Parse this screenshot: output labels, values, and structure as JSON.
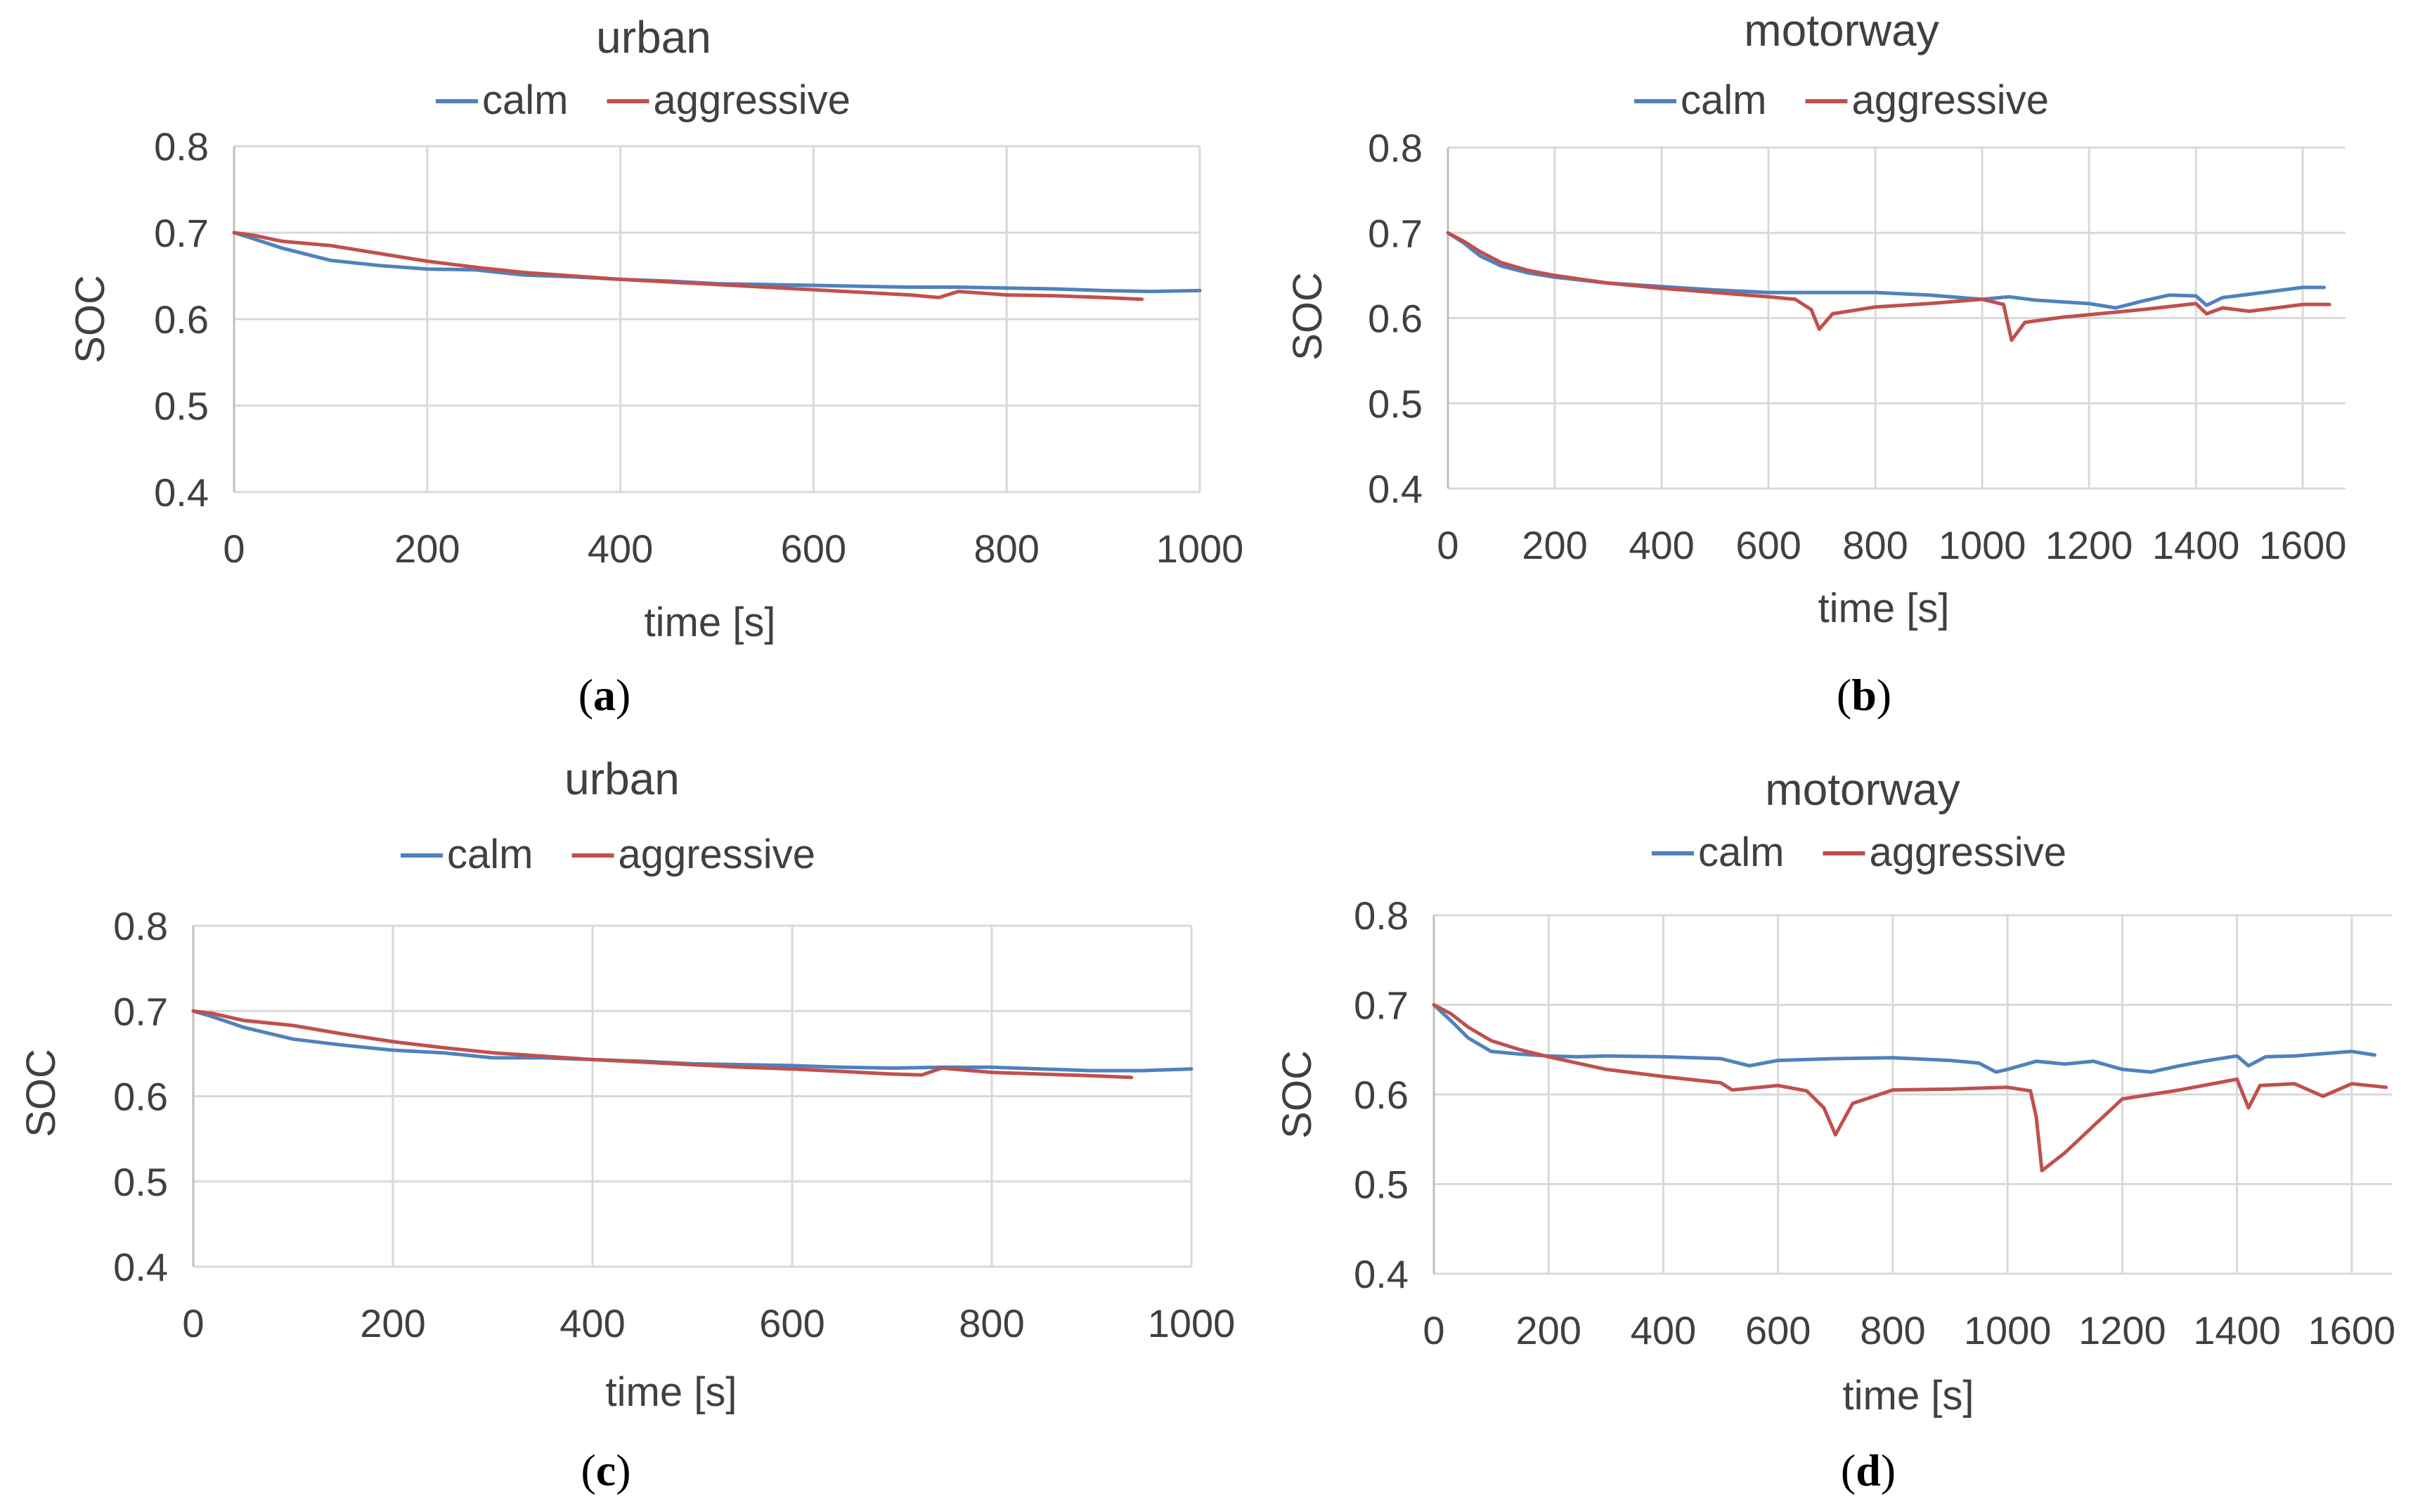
{
  "figure": {
    "panels": [
      {
        "id": "a",
        "caption": "a",
        "chart_index": 0
      },
      {
        "id": "b",
        "caption": "b",
        "chart_index": 1
      },
      {
        "id": "c",
        "caption": "c",
        "chart_index": 2
      },
      {
        "id": "d",
        "caption": "d",
        "chart_index": 3
      }
    ]
  },
  "colors": {
    "calm": "#4f81bd",
    "aggressive": "#c0504d",
    "grid": "#d9d9d9",
    "text": "#404040"
  },
  "chart_data": [
    {
      "type": "line",
      "title": "urban",
      "xlabel": "time [s]",
      "ylabel": "SOC",
      "xlim": [
        0,
        1000
      ],
      "ylim": [
        0.4,
        0.8
      ],
      "xticks": [
        0,
        200,
        400,
        600,
        800,
        1000
      ],
      "xtick_labels": [
        "0",
        "200",
        "400",
        "600",
        "800",
        "1000"
      ],
      "yticks": [
        0.4,
        0.5,
        0.6,
        0.7,
        0.8
      ],
      "ytick_labels": [
        "0.4",
        "0.5",
        "0.6",
        "0.7",
        "0.8"
      ],
      "grid": true,
      "legend_position": "top",
      "series": [
        {
          "name": "calm",
          "color": "#4f81bd",
          "x": [
            0,
            20,
            50,
            100,
            150,
            200,
            250,
            300,
            350,
            400,
            450,
            500,
            550,
            600,
            650,
            700,
            750,
            800,
            850,
            900,
            950,
            1000
          ],
          "y": [
            0.7,
            0.693,
            0.682,
            0.668,
            0.662,
            0.658,
            0.657,
            0.651,
            0.649,
            0.646,
            0.644,
            0.641,
            0.64,
            0.639,
            0.638,
            0.637,
            0.637,
            0.636,
            0.635,
            0.633,
            0.632,
            0.633
          ]
        },
        {
          "name": "aggressive",
          "color": "#c0504d",
          "x": [
            0,
            20,
            50,
            100,
            150,
            200,
            250,
            300,
            350,
            400,
            450,
            500,
            550,
            600,
            650,
            700,
            730,
            750,
            800,
            850,
            900,
            940
          ],
          "y": [
            0.7,
            0.697,
            0.69,
            0.685,
            0.676,
            0.667,
            0.66,
            0.654,
            0.65,
            0.646,
            0.643,
            0.64,
            0.637,
            0.634,
            0.631,
            0.628,
            0.625,
            0.632,
            0.628,
            0.627,
            0.625,
            0.623
          ]
        }
      ]
    },
    {
      "type": "line",
      "title": "motorway",
      "xlabel": "time [s]",
      "ylabel": "SOC",
      "xlim": [
        0,
        1680
      ],
      "ylim": [
        0.4,
        0.8
      ],
      "xticks": [
        0,
        200,
        400,
        600,
        800,
        1000,
        1200,
        1400,
        1600
      ],
      "xtick_labels": [
        "0",
        "200",
        "400",
        "600",
        "800",
        "1000",
        "1200",
        "1400",
        "1600"
      ],
      "yticks": [
        0.4,
        0.5,
        0.6,
        0.7,
        0.8
      ],
      "ytick_labels": [
        "0.4",
        "0.5",
        "0.6",
        "0.7",
        "0.8"
      ],
      "grid": true,
      "legend_position": "top",
      "series": [
        {
          "name": "calm",
          "color": "#4f81bd",
          "x": [
            0,
            30,
            60,
            100,
            150,
            200,
            300,
            400,
            500,
            600,
            700,
            800,
            900,
            1000,
            1050,
            1100,
            1200,
            1250,
            1300,
            1350,
            1400,
            1420,
            1450,
            1500,
            1600,
            1640
          ],
          "y": [
            0.7,
            0.688,
            0.673,
            0.661,
            0.653,
            0.648,
            0.641,
            0.637,
            0.633,
            0.63,
            0.63,
            0.63,
            0.627,
            0.622,
            0.625,
            0.621,
            0.617,
            0.612,
            0.62,
            0.627,
            0.626,
            0.615,
            0.624,
            0.628,
            0.636,
            0.636
          ]
        },
        {
          "name": "aggressive",
          "color": "#c0504d",
          "x": [
            0,
            30,
            60,
            100,
            150,
            200,
            300,
            400,
            500,
            600,
            650,
            680,
            695,
            720,
            800,
            900,
            1000,
            1040,
            1055,
            1080,
            1150,
            1200,
            1300,
            1400,
            1420,
            1450,
            1500,
            1550,
            1600,
            1650
          ],
          "y": [
            0.7,
            0.69,
            0.678,
            0.665,
            0.656,
            0.65,
            0.641,
            0.635,
            0.63,
            0.625,
            0.622,
            0.61,
            0.587,
            0.605,
            0.613,
            0.617,
            0.622,
            0.616,
            0.574,
            0.595,
            0.601,
            0.604,
            0.61,
            0.617,
            0.605,
            0.612,
            0.608,
            0.612,
            0.616,
            0.616
          ]
        }
      ]
    },
    {
      "type": "line",
      "title": "urban",
      "xlabel": "time [s]",
      "ylabel": "SOC",
      "xlim": [
        0,
        1000
      ],
      "ylim": [
        0.4,
        0.8
      ],
      "xticks": [
        0,
        200,
        400,
        600,
        800,
        1000
      ],
      "xtick_labels": [
        "0",
        "200",
        "400",
        "600",
        "800",
        "1000"
      ],
      "yticks": [
        0.4,
        0.5,
        0.6,
        0.7,
        0.8
      ],
      "ytick_labels": [
        "0.4",
        "0.5",
        "0.6",
        "0.7",
        "0.8"
      ],
      "grid": true,
      "legend_position": "top",
      "series": [
        {
          "name": "calm",
          "color": "#4f81bd",
          "x": [
            0,
            20,
            50,
            100,
            150,
            200,
            250,
            300,
            350,
            400,
            450,
            500,
            550,
            600,
            650,
            700,
            750,
            800,
            850,
            900,
            950,
            1000
          ],
          "y": [
            0.7,
            0.693,
            0.681,
            0.667,
            0.66,
            0.654,
            0.651,
            0.645,
            0.645,
            0.643,
            0.641,
            0.638,
            0.637,
            0.636,
            0.634,
            0.633,
            0.634,
            0.634,
            0.632,
            0.63,
            0.63,
            0.632
          ]
        },
        {
          "name": "aggressive",
          "color": "#c0504d",
          "x": [
            0,
            20,
            50,
            100,
            150,
            200,
            250,
            300,
            350,
            400,
            450,
            500,
            550,
            600,
            650,
            700,
            730,
            750,
            800,
            850,
            900,
            940
          ],
          "y": [
            0.7,
            0.697,
            0.689,
            0.683,
            0.673,
            0.664,
            0.657,
            0.651,
            0.647,
            0.643,
            0.64,
            0.637,
            0.634,
            0.632,
            0.629,
            0.626,
            0.625,
            0.633,
            0.628,
            0.626,
            0.624,
            0.622
          ]
        }
      ]
    },
    {
      "type": "line",
      "title": "motorway",
      "xlabel": "time [s]",
      "ylabel": "SOC",
      "xlim": [
        0,
        1670
      ],
      "ylim": [
        0.4,
        0.8
      ],
      "xticks": [
        0,
        200,
        400,
        600,
        800,
        1000,
        1200,
        1400,
        1600
      ],
      "xtick_labels": [
        "0",
        "200",
        "400",
        "600",
        "800",
        "1000",
        "1200",
        "1400",
        "1600"
      ],
      "yticks": [
        0.4,
        0.5,
        0.6,
        0.7,
        0.8
      ],
      "ytick_labels": [
        "0.4",
        "0.5",
        "0.6",
        "0.7",
        "0.8"
      ],
      "grid": true,
      "legend_position": "top",
      "series": [
        {
          "name": "calm",
          "color": "#4f81bd",
          "x": [
            0,
            30,
            60,
            100,
            150,
            200,
            250,
            300,
            400,
            500,
            550,
            600,
            700,
            800,
            900,
            950,
            980,
            1000,
            1050,
            1100,
            1150,
            1200,
            1250,
            1300,
            1350,
            1400,
            1420,
            1450,
            1500,
            1600,
            1640
          ],
          "y": [
            0.7,
            0.682,
            0.663,
            0.648,
            0.645,
            0.643,
            0.642,
            0.643,
            0.642,
            0.64,
            0.632,
            0.638,
            0.64,
            0.641,
            0.638,
            0.635,
            0.625,
            0.628,
            0.637,
            0.634,
            0.637,
            0.628,
            0.625,
            0.632,
            0.638,
            0.643,
            0.632,
            0.642,
            0.643,
            0.648,
            0.644
          ]
        },
        {
          "name": "aggressive",
          "color": "#c0504d",
          "x": [
            0,
            30,
            60,
            100,
            150,
            200,
            300,
            400,
            500,
            520,
            600,
            650,
            680,
            700,
            730,
            800,
            900,
            1000,
            1040,
            1050,
            1060,
            1100,
            1150,
            1200,
            1300,
            1400,
            1420,
            1440,
            1500,
            1550,
            1600,
            1660
          ],
          "y": [
            0.7,
            0.69,
            0.675,
            0.66,
            0.65,
            0.642,
            0.628,
            0.62,
            0.613,
            0.605,
            0.61,
            0.604,
            0.585,
            0.555,
            0.59,
            0.605,
            0.606,
            0.608,
            0.604,
            0.575,
            0.515,
            0.535,
            0.565,
            0.595,
            0.605,
            0.617,
            0.585,
            0.61,
            0.612,
            0.598,
            0.612,
            0.608
          ]
        }
      ]
    }
  ]
}
